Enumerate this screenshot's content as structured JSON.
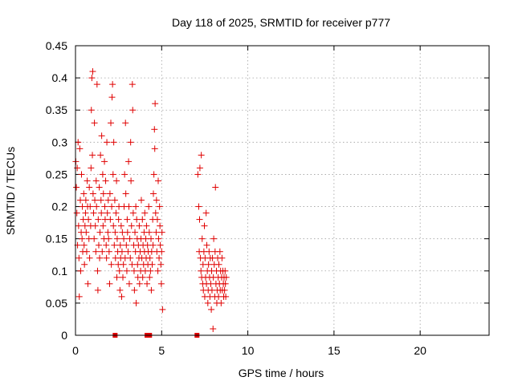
{
  "chart_data": {
    "type": "scatter",
    "title": "Day 118 of 2025, SRMTID for receiver p777",
    "xlabel": "GPS time / hours",
    "ylabel": "SRMTID / TECUs",
    "xlim": [
      0,
      24
    ],
    "ylim": [
      0,
      0.45
    ],
    "xticks": [
      0,
      5,
      10,
      15,
      20
    ],
    "xtick_labels": [
      "0",
      "5",
      "10",
      "15",
      "20"
    ],
    "yticks": [
      0,
      0.05,
      0.1,
      0.15,
      0.2,
      0.25,
      0.3,
      0.35,
      0.4,
      0.45
    ],
    "ytick_labels": [
      "0",
      "0.05",
      "0.1",
      "0.15",
      "0.2",
      "0.25",
      "0.3",
      "0.35",
      "0.4",
      "0.45"
    ],
    "grid": true,
    "marker": "plus",
    "color": "#e00000",
    "zero_markers_x": [
      2.3,
      4.15,
      4.3,
      7.05
    ],
    "series": [
      {
        "name": "SRMTID",
        "points": [
          [
            0.02,
            0.27
          ],
          [
            0.05,
            0.23
          ],
          [
            0.08,
            0.19
          ],
          [
            0.1,
            0.26
          ],
          [
            0.12,
            0.14
          ],
          [
            0.15,
            0.3
          ],
          [
            0.18,
            0.17
          ],
          [
            0.2,
            0.12
          ],
          [
            0.22,
            0.06
          ],
          [
            0.25,
            0.29
          ],
          [
            0.28,
            0.21
          ],
          [
            0.3,
            0.1
          ],
          [
            0.33,
            0.16
          ],
          [
            0.35,
            0.25
          ],
          [
            0.38,
            0.15
          ],
          [
            0.4,
            0.2
          ],
          [
            0.42,
            0.13
          ],
          [
            0.45,
            0.18
          ],
          [
            0.48,
            0.22
          ],
          [
            0.5,
            0.14
          ],
          [
            0.52,
            0.11
          ],
          [
            0.55,
            0.17
          ],
          [
            0.58,
            0.19
          ],
          [
            0.6,
            0.21
          ],
          [
            0.62,
            0.16
          ],
          [
            0.65,
            0.13
          ],
          [
            0.68,
            0.24
          ],
          [
            0.7,
            0.2
          ],
          [
            0.72,
            0.08
          ],
          [
            0.75,
            0.18
          ],
          [
            0.78,
            0.15
          ],
          [
            0.8,
            0.23
          ],
          [
            0.82,
            0.12
          ],
          [
            0.85,
            0.2
          ],
          [
            0.88,
            0.17
          ],
          [
            0.9,
            0.26
          ],
          [
            0.92,
            0.35
          ],
          [
            0.95,
            0.4
          ],
          [
            0.98,
            0.28
          ],
          [
            1.0,
            0.41
          ],
          [
            1.02,
            0.22
          ],
          [
            1.05,
            0.19
          ],
          [
            1.08,
            0.15
          ],
          [
            1.1,
            0.33
          ],
          [
            1.12,
            0.21
          ],
          [
            1.15,
            0.17
          ],
          [
            1.18,
            0.13
          ],
          [
            1.2,
            0.24
          ],
          [
            1.22,
            0.2
          ],
          [
            1.25,
            0.39
          ],
          [
            1.28,
            0.1
          ],
          [
            1.3,
            0.07
          ],
          [
            1.32,
            0.18
          ],
          [
            1.35,
            0.14
          ],
          [
            1.38,
            0.23
          ],
          [
            1.4,
            0.12
          ],
          [
            1.42,
            0.16
          ],
          [
            1.45,
            0.28
          ],
          [
            1.48,
            0.21
          ],
          [
            1.5,
            0.19
          ],
          [
            1.52,
            0.31
          ],
          [
            1.55,
            0.13
          ],
          [
            1.58,
            0.25
          ],
          [
            1.6,
            0.17
          ],
          [
            1.62,
            0.22
          ],
          [
            1.65,
            0.15
          ],
          [
            1.68,
            0.27
          ],
          [
            1.7,
            0.2
          ],
          [
            1.72,
            0.18
          ],
          [
            1.75,
            0.24
          ],
          [
            1.78,
            0.14
          ],
          [
            1.8,
            0.12
          ],
          [
            1.82,
            0.3
          ],
          [
            1.85,
            0.19
          ],
          [
            1.88,
            0.16
          ],
          [
            1.9,
            0.21
          ],
          [
            1.92,
            0.15
          ],
          [
            1.95,
            0.13
          ],
          [
            1.98,
            0.08
          ],
          [
            2.0,
            0.22
          ],
          [
            2.02,
            0.18
          ],
          [
            2.05,
            0.33
          ],
          [
            2.08,
            0.11
          ],
          [
            2.1,
            0.2
          ],
          [
            2.12,
            0.37
          ],
          [
            2.15,
            0.39
          ],
          [
            2.18,
            0.25
          ],
          [
            2.2,
            0.17
          ],
          [
            2.22,
            0.3
          ],
          [
            2.25,
            0.14
          ],
          [
            2.28,
            0.21
          ],
          [
            2.3,
            0.16
          ],
          [
            2.32,
            0.12
          ],
          [
            2.35,
            0.19
          ],
          [
            2.38,
            0.24
          ],
          [
            2.4,
            0.09
          ],
          [
            2.42,
            0.15
          ],
          [
            2.45,
            0.13
          ],
          [
            2.48,
            0.11
          ],
          [
            2.5,
            0.18
          ],
          [
            2.52,
            0.2
          ],
          [
            2.55,
            0.1
          ],
          [
            2.58,
            0.07
          ],
          [
            2.6,
            0.14
          ],
          [
            2.62,
            0.12
          ],
          [
            2.65,
            0.17
          ],
          [
            2.68,
            0.06
          ],
          [
            2.7,
            0.13
          ],
          [
            2.72,
            0.16
          ],
          [
            2.75,
            0.09
          ],
          [
            2.78,
            0.11
          ],
          [
            2.8,
            0.15
          ],
          [
            2.82,
            0.2
          ],
          [
            2.85,
            0.25
          ],
          [
            2.88,
            0.12
          ],
          [
            2.9,
            0.33
          ],
          [
            2.92,
            0.22
          ],
          [
            2.95,
            0.14
          ],
          [
            2.98,
            0.1
          ],
          [
            3.0,
            0.18
          ],
          [
            3.02,
            0.16
          ],
          [
            3.05,
            0.13
          ],
          [
            3.08,
            0.27
          ],
          [
            3.1,
            0.2
          ],
          [
            3.12,
            0.08
          ],
          [
            3.15,
            0.15
          ],
          [
            3.18,
            0.12
          ],
          [
            3.2,
            0.3
          ],
          [
            3.22,
            0.24
          ],
          [
            3.25,
            0.17
          ],
          [
            3.28,
            0.11
          ],
          [
            3.3,
            0.39
          ],
          [
            3.32,
            0.35
          ],
          [
            3.35,
            0.19
          ],
          [
            3.38,
            0.14
          ],
          [
            3.4,
            0.1
          ],
          [
            3.42,
            0.07
          ],
          [
            3.45,
            0.16
          ],
          [
            3.48,
            0.13
          ],
          [
            3.5,
            0.2
          ],
          [
            3.52,
            0.05
          ],
          [
            3.55,
            0.18
          ],
          [
            3.58,
            0.15
          ],
          [
            3.6,
            0.11
          ],
          [
            3.62,
            0.09
          ],
          [
            3.65,
            0.14
          ],
          [
            3.68,
            0.12
          ],
          [
            3.7,
            0.17
          ],
          [
            3.72,
            0.08
          ],
          [
            3.75,
            0.13
          ],
          [
            3.78,
            0.1
          ],
          [
            3.8,
            0.15
          ],
          [
            3.82,
            0.21
          ],
          [
            3.85,
            0.12
          ],
          [
            3.88,
            0.18
          ],
          [
            3.9,
            0.09
          ],
          [
            3.92,
            0.14
          ],
          [
            3.95,
            0.11
          ],
          [
            3.98,
            0.16
          ],
          [
            4.0,
            0.13
          ],
          [
            4.02,
            0.19
          ],
          [
            4.05,
            0.1
          ],
          [
            4.08,
            0.15
          ],
          [
            4.1,
            0.12
          ],
          [
            4.12,
            0.17
          ],
          [
            4.15,
            0.08
          ],
          [
            4.18,
            0.14
          ],
          [
            4.2,
            0.11
          ],
          [
            4.22,
            0.13
          ],
          [
            4.25,
            0.2
          ],
          [
            4.28,
            0.16
          ],
          [
            4.3,
            0.09
          ],
          [
            4.32,
            0.12
          ],
          [
            4.35,
            0.1
          ],
          [
            4.38,
            0.15
          ],
          [
            4.4,
            0.07
          ],
          [
            4.42,
            0.13
          ],
          [
            4.45,
            0.11
          ],
          [
            4.48,
            0.18
          ],
          [
            4.5,
            0.14
          ],
          [
            4.52,
            0.22
          ],
          [
            4.55,
            0.25
          ],
          [
            4.58,
            0.32
          ],
          [
            4.6,
            0.29
          ],
          [
            4.62,
            0.36
          ],
          [
            4.65,
            0.19
          ],
          [
            4.68,
            0.16
          ],
          [
            4.7,
            0.21
          ],
          [
            4.72,
            0.13
          ],
          [
            4.75,
            0.18
          ],
          [
            4.78,
            0.1
          ],
          [
            4.8,
            0.24
          ],
          [
            4.82,
            0.15
          ],
          [
            4.85,
            0.12
          ],
          [
            4.88,
            0.2
          ],
          [
            4.9,
            0.17
          ],
          [
            4.92,
            0.14
          ],
          [
            4.95,
            0.11
          ],
          [
            4.98,
            0.08
          ],
          [
            5.0,
            0.13
          ],
          [
            5.02,
            0.16
          ],
          [
            5.05,
            0.04
          ],
          [
            7.1,
            0.25
          ],
          [
            7.15,
            0.2
          ],
          [
            7.18,
            0.13
          ],
          [
            7.2,
            0.18
          ],
          [
            7.22,
            0.26
          ],
          [
            7.25,
            0.12
          ],
          [
            7.28,
            0.1
          ],
          [
            7.3,
            0.28
          ],
          [
            7.32,
            0.09
          ],
          [
            7.35,
            0.15
          ],
          [
            7.38,
            0.08
          ],
          [
            7.4,
            0.11
          ],
          [
            7.42,
            0.07
          ],
          [
            7.45,
            0.13
          ],
          [
            7.48,
            0.17
          ],
          [
            7.5,
            0.06
          ],
          [
            7.52,
            0.12
          ],
          [
            7.55,
            0.09
          ],
          [
            7.58,
            0.19
          ],
          [
            7.6,
            0.08
          ],
          [
            7.62,
            0.14
          ],
          [
            7.65,
            0.1
          ],
          [
            7.68,
            0.05
          ],
          [
            7.7,
            0.07
          ],
          [
            7.72,
            0.11
          ],
          [
            7.75,
            0.13
          ],
          [
            7.78,
            0.09
          ],
          [
            7.8,
            0.06
          ],
          [
            7.82,
            0.12
          ],
          [
            7.85,
            0.08
          ],
          [
            7.88,
            0.04
          ],
          [
            7.9,
            0.1
          ],
          [
            7.92,
            0.07
          ],
          [
            7.95,
            0.12
          ],
          [
            7.98,
            0.01
          ],
          [
            8.0,
            0.09
          ],
          [
            8.02,
            0.15
          ],
          [
            8.05,
            0.11
          ],
          [
            8.08,
            0.06
          ],
          [
            8.1,
            0.13
          ],
          [
            8.12,
            0.23
          ],
          [
            8.15,
            0.08
          ],
          [
            8.18,
            0.1
          ],
          [
            8.2,
            0.05
          ],
          [
            8.22,
            0.07
          ],
          [
            8.25,
            0.12
          ],
          [
            8.28,
            0.09
          ],
          [
            8.3,
            0.06
          ],
          [
            8.32,
            0.11
          ],
          [
            8.35,
            0.08
          ],
          [
            8.38,
            0.13
          ],
          [
            8.4,
            0.07
          ],
          [
            8.42,
            0.1
          ],
          [
            8.45,
            0.05
          ],
          [
            8.48,
            0.09
          ],
          [
            8.5,
            0.12
          ],
          [
            8.52,
            0.07
          ],
          [
            8.55,
            0.1
          ],
          [
            8.58,
            0.08
          ],
          [
            8.6,
            0.06
          ],
          [
            8.62,
            0.09
          ],
          [
            8.65,
            0.07
          ],
          [
            8.68,
            0.1
          ],
          [
            8.7,
            0.08
          ],
          [
            8.72,
            0.06
          ],
          [
            8.75,
            0.09
          ]
        ]
      }
    ]
  }
}
